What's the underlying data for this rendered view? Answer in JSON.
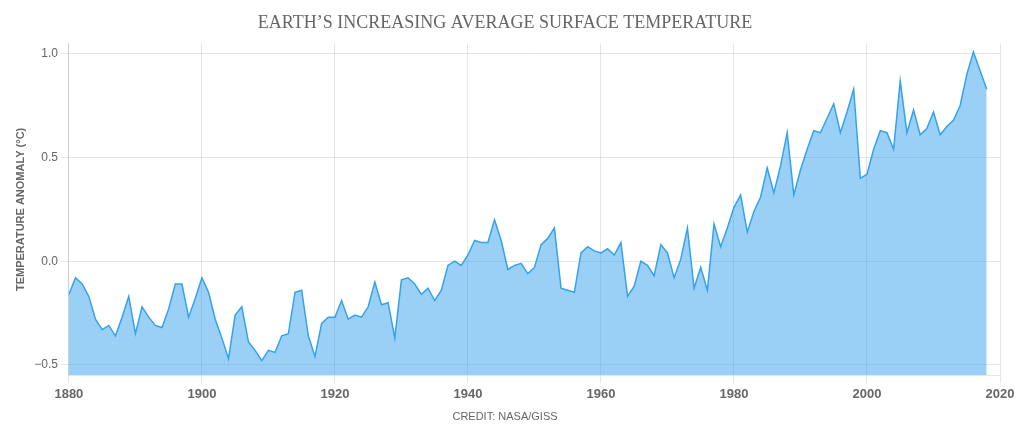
{
  "chart_data": {
    "type": "area",
    "title": "EARTH’S INCREASING AVERAGE SURFACE TEMPERATURE",
    "annotation": "CREDIT: NASA/GISS",
    "ylabel": "TEMPERATURE ANOMALY (°C)",
    "xlim": [
      1880,
      2020
    ],
    "ylim": [
      -0.55,
      1.05
    ],
    "xticks": [
      1880,
      1900,
      1920,
      1940,
      1960,
      1980,
      2000,
      2020
    ],
    "yticks": [
      {
        "value": -0.5,
        "label": "−0.5"
      },
      {
        "value": 0.0,
        "label": "0.0"
      },
      0.5,
      {
        "value": 1.0,
        "label": "1.0"
      }
    ],
    "grid": true,
    "x": [
      1880,
      1881,
      1882,
      1883,
      1884,
      1885,
      1886,
      1887,
      1888,
      1889,
      1890,
      1891,
      1892,
      1893,
      1894,
      1895,
      1896,
      1897,
      1898,
      1899,
      1900,
      1901,
      1902,
      1903,
      1904,
      1905,
      1906,
      1907,
      1908,
      1909,
      1910,
      1911,
      1912,
      1913,
      1914,
      1915,
      1916,
      1917,
      1918,
      1919,
      1920,
      1921,
      1922,
      1923,
      1924,
      1925,
      1926,
      1927,
      1928,
      1929,
      1930,
      1931,
      1932,
      1933,
      1934,
      1935,
      1936,
      1937,
      1938,
      1939,
      1940,
      1941,
      1942,
      1943,
      1944,
      1945,
      1946,
      1947,
      1948,
      1949,
      1950,
      1951,
      1952,
      1953,
      1954,
      1955,
      1956,
      1957,
      1958,
      1959,
      1960,
      1961,
      1962,
      1963,
      1964,
      1965,
      1966,
      1967,
      1968,
      1969,
      1970,
      1971,
      1972,
      1973,
      1974,
      1975,
      1976,
      1977,
      1978,
      1979,
      1980,
      1981,
      1982,
      1983,
      1984,
      1985,
      1986,
      1987,
      1988,
      1989,
      1990,
      1991,
      1992,
      1993,
      1994,
      1995,
      1996,
      1997,
      1998,
      1999,
      2000,
      2001,
      2002,
      2003,
      2004,
      2005,
      2006,
      2007,
      2008,
      2009,
      2010,
      2011,
      2012,
      2013,
      2014,
      2015,
      2016,
      2017,
      2018
    ],
    "values": [
      -0.16,
      -0.08,
      -0.11,
      -0.17,
      -0.28,
      -0.33,
      -0.31,
      -0.36,
      -0.27,
      -0.17,
      -0.35,
      -0.22,
      -0.27,
      -0.31,
      -0.32,
      -0.23,
      -0.11,
      -0.11,
      -0.27,
      -0.18,
      -0.08,
      -0.15,
      -0.28,
      -0.37,
      -0.47,
      -0.26,
      -0.22,
      -0.39,
      -0.43,
      -0.48,
      -0.43,
      -0.44,
      -0.36,
      -0.35,
      -0.15,
      -0.14,
      -0.36,
      -0.46,
      -0.3,
      -0.27,
      -0.27,
      -0.19,
      -0.28,
      -0.26,
      -0.27,
      -0.22,
      -0.1,
      -0.21,
      -0.2,
      -0.37,
      -0.09,
      -0.08,
      -0.11,
      -0.16,
      -0.13,
      -0.19,
      -0.14,
      -0.02,
      -0.0,
      -0.02,
      0.03,
      0.1,
      0.09,
      0.09,
      0.2,
      0.1,
      -0.04,
      -0.02,
      -0.01,
      -0.06,
      -0.03,
      0.08,
      0.11,
      0.16,
      -0.13,
      -0.14,
      -0.15,
      0.04,
      0.07,
      0.05,
      0.04,
      0.06,
      0.03,
      0.09,
      -0.17,
      -0.12,
      0.0,
      -0.02,
      -0.07,
      0.08,
      0.04,
      -0.08,
      0.01,
      0.16,
      -0.13,
      -0.03,
      -0.14,
      0.18,
      0.07,
      0.16,
      0.26,
      0.32,
      0.14,
      0.24,
      0.31,
      0.45,
      0.33,
      0.46,
      0.62,
      0.32,
      0.44,
      0.54,
      0.63,
      0.62,
      0.69,
      0.76,
      0.62,
      0.72,
      0.83,
      0.4,
      0.42,
      0.54,
      0.63,
      0.62,
      0.54,
      0.87,
      0.62,
      0.73,
      0.61,
      0.64,
      0.72,
      0.61,
      0.65,
      0.68,
      0.75,
      0.9,
      1.01,
      0.92,
      0.83
    ]
  }
}
